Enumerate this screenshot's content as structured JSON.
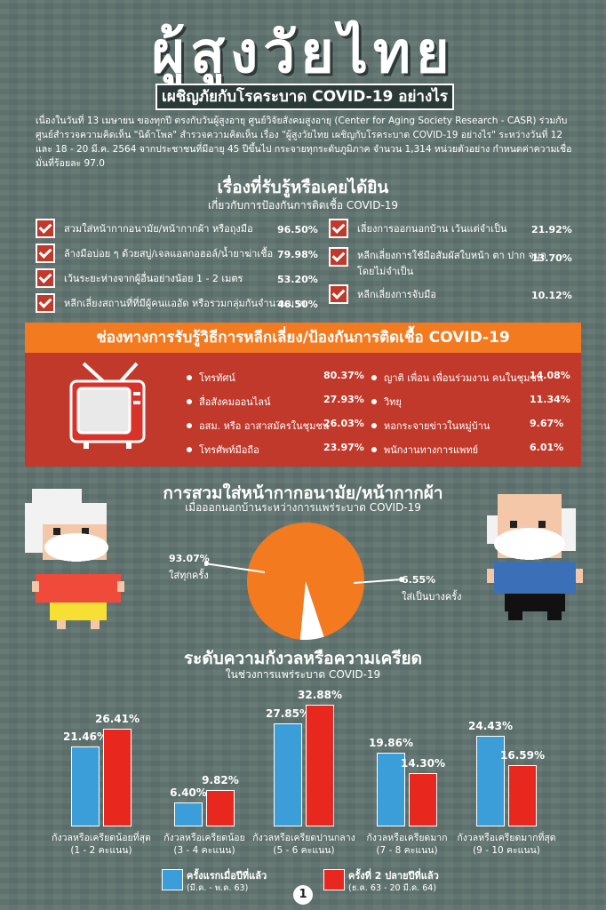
{
  "header": {
    "title": "ผู้สูงวัยไทย",
    "subtitle": "เผชิญภัยกับโรคระบาด COVID-19 อย่างไร",
    "intro": "เนื่องในวันที่ 13 เมษายน ของทุกปี ตรงกับวันผู้สูงอายุ ศูนย์วิจัยสังคมสูงอายุ (Center for Aging Society Research - CASR) ร่วมกับศูนย์สำรวจความคิดเห็น \"นิด้าโพล\" สำรวจความคิดเห็น เรื่อง \"ผู้สูงวัยไทย เผชิญกับโรคระบาด COVID-19 อย่างไร\" ระหว่างวันที่ 12 และ 18 - 20 มี.ค. 2564 จากประชาชนที่มีอายุ 45 ปีขึ้นไป กระจายทุกระดับภูมิภาค จำนวน 1,314 หน่วยตัวอย่าง กำหนดค่าความเชื่อมั่นที่ร้อยละ 97.0"
  },
  "prevention": {
    "title": "เรื่องที่รับรู้หรือเคยได้ยิน",
    "subtitle": "เกี่ยวกับการป้องกันการติดเชื้อ COVID-19",
    "left": [
      {
        "label": "สวมใส่หน้ากากอนามัย/หน้ากากผ้า หรือถุงมือ",
        "pct": "96.50%"
      },
      {
        "label": "ล้างมือบ่อย ๆ ด้วยสบู่/เจลแอลกอฮอล์/น้ำยาฆ่าเชื้อ",
        "pct": "79.98%"
      },
      {
        "label": "เว้นระยะห่างจากผู้อื่นอย่างน้อย 1 - 2 เมตร",
        "pct": "53.20%"
      },
      {
        "label": "หลีกเลี่ยงสถานที่ที่มีผู้คนแออัด หรือรวมกลุ่มกันจำนวนมาก",
        "pct": "46.50%"
      }
    ],
    "right": [
      {
        "label": "เลี่ยงการออกนอกบ้าน เว้นแต่จำเป็น",
        "pct": "21.92%"
      },
      {
        "label": "หลีกเลี่ยงการใช้มือสัมผัสใบหน้า ตา ปาก จมูก",
        "label2": "โดยไม่จำเป็น",
        "pct": "13.70%"
      },
      {
        "label": "หลีกเลี่ยงการจับมือ",
        "pct": "10.12%"
      }
    ]
  },
  "channels": {
    "title": "ช่องทางการรับรู้วิธีการหลีกเลี่ยง/ป้องกันการติดเชื้อ COVID-19",
    "left": [
      {
        "label": "โทรทัศน์",
        "pct": "80.37%"
      },
      {
        "label": "สื่อสังคมออนไลน์",
        "pct": "27.93%"
      },
      {
        "label": "อสม. หรือ อาสาสมัครในชุมชน",
        "pct": "26.03%"
      },
      {
        "label": "โทรศัพท์มือถือ",
        "pct": "23.97%"
      }
    ],
    "right": [
      {
        "label": "ญาติ เพื่อน เพื่อนร่วมงาน คนในชุมชน",
        "pct": "14.08%"
      },
      {
        "label": "วิทยุ",
        "pct": "11.34%"
      },
      {
        "label": "หอกระจายข่าวในหมู่บ้าน",
        "pct": "9.67%"
      },
      {
        "label": "พนักงานทางการแพทย์",
        "pct": "6.01%"
      }
    ]
  },
  "mask": {
    "title": "การสวมใส่หน้ากากอนามัย/หน้ากากผ้า",
    "subtitle": "เมื่อออกนอกบ้านระหว่างการแพร่ระบาด COVID-19",
    "always_pct": "93.07%",
    "always_label": "ใส่ทุกครั้ง",
    "sometimes_pct": "6.55%",
    "sometimes_label": "ใส่เป็นบางครั้ง",
    "slices": [
      93.07,
      6.55
    ],
    "colors": [
      "#f47a20",
      "#ffffff"
    ]
  },
  "stress": {
    "title": "ระดับความกังวลหรือความเครียด",
    "subtitle": "ในช่วงการแพร่ระบาด COVID-19"
  },
  "chart_data": {
    "type": "bar",
    "categories": [
      [
        "กังวลหรือเครียดน้อยที่สุด",
        "(1 - 2 คะแนน)"
      ],
      [
        "กังวลหรือเครียดน้อย",
        "(3 - 4 คะแนน)"
      ],
      [
        "กังวลหรือเครียดปานกลาง",
        "(5 - 6 คะแนน)"
      ],
      [
        "กังวลหรือเครียดมาก",
        "(7 - 8 คะแนน)"
      ],
      [
        "กังวลหรือเครียดมากที่สุด",
        "(9 - 10 คะแนน)"
      ]
    ],
    "series": [
      {
        "name": "ครั้งแรกเมื่อปีที่แล้ว",
        "period": "(มี.ค. - พ.ค. 63)",
        "values": [
          21.46,
          6.4,
          27.85,
          19.86,
          24.43
        ],
        "labels": [
          "21.46%",
          "6.40%",
          "27.85%",
          "19.86%",
          "24.43%"
        ],
        "color": "#3b9ed8"
      },
      {
        "name": "ครั้งที่ 2 ปลายปีที่แล้ว",
        "period": "(ธ.ค. 63 - 20 มี.ค. 64)",
        "values": [
          26.41,
          9.82,
          32.88,
          14.3,
          16.59
        ],
        "labels": [
          "26.41%",
          "9.82%",
          "32.88%",
          "14.30%",
          "16.59%"
        ],
        "color": "#e8281e"
      }
    ],
    "ylim": [
      0,
      35
    ]
  },
  "footer": {
    "page": "1"
  }
}
